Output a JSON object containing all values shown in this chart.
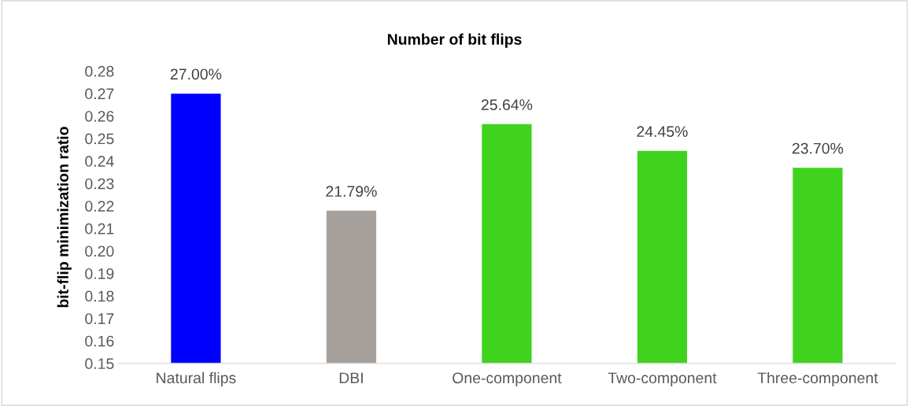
{
  "chart_data": {
    "type": "bar",
    "title": "Number of bit flips",
    "ylabel": "bit-flip minimization ratio",
    "categories": [
      "Natural flips",
      "DBI",
      "One-component",
      "Two-component",
      "Three-component"
    ],
    "values": [
      0.27,
      0.2179,
      0.2564,
      0.2445,
      0.237
    ],
    "colors": [
      "#0000ff",
      "#a5a09c",
      "#3fd31f",
      "#3fd31f",
      "#3fd31f"
    ],
    "value_labels": [
      "27.00%",
      "21.79%",
      "25.64%",
      "24.45%",
      "23.70%"
    ],
    "ylim": [
      0.15,
      0.28
    ],
    "yticks": [
      {
        "value": 0.15,
        "label": "0.15"
      },
      {
        "value": 0.16,
        "label": "0.16"
      },
      {
        "value": 0.17,
        "label": "0.17"
      },
      {
        "value": 0.18,
        "label": "0.18"
      },
      {
        "value": 0.19,
        "label": "0.19"
      },
      {
        "value": 0.2,
        "label": "0.20"
      },
      {
        "value": 0.21,
        "label": "0.21"
      },
      {
        "value": 0.22,
        "label": "0.22"
      },
      {
        "value": 0.23,
        "label": "0.23"
      },
      {
        "value": 0.24,
        "label": "0.24"
      },
      {
        "value": 0.25,
        "label": "0.25"
      },
      {
        "value": 0.26,
        "label": "0.26"
      },
      {
        "value": 0.27,
        "label": "0.27"
      },
      {
        "value": 0.28,
        "label": "0.28"
      }
    ],
    "grid": false,
    "legend": false
  }
}
